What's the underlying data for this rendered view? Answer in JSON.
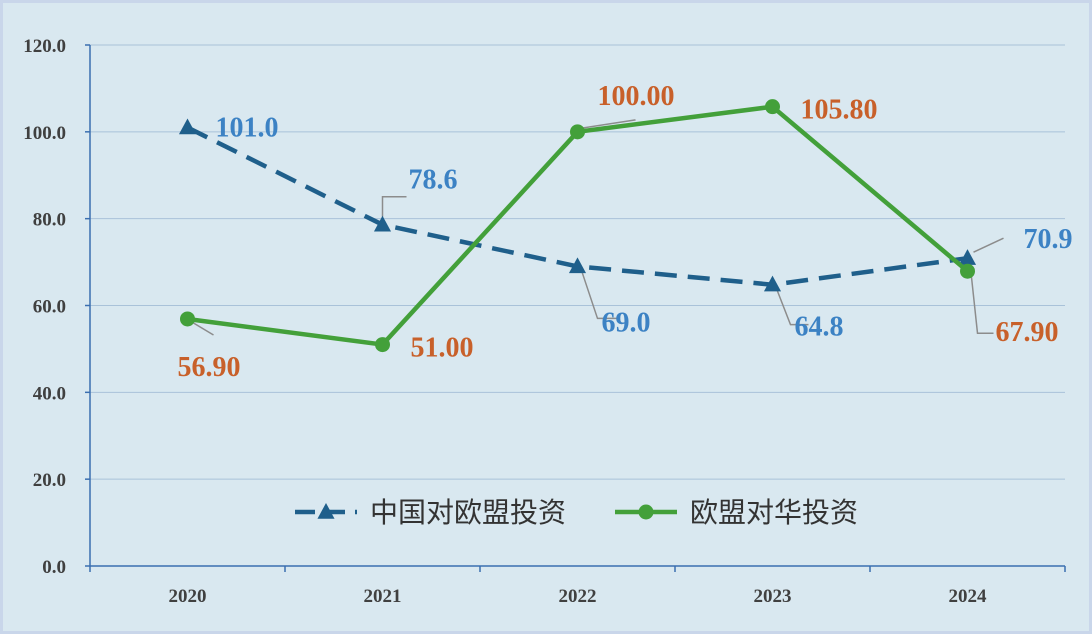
{
  "chart_data": {
    "type": "line",
    "categories": [
      "2020",
      "2021",
      "2022",
      "2023",
      "2024"
    ],
    "y_ticks": [
      "0.0",
      "20.0",
      "40.0",
      "60.0",
      "80.0",
      "100.0",
      "120.0"
    ],
    "ylim": [
      0,
      120
    ],
    "grid": true,
    "legend_position": "bottom-center",
    "series": [
      {
        "name": "中国对欧盟投资",
        "values": [
          101.0,
          78.6,
          69.0,
          64.8,
          70.9
        ],
        "labels": [
          "101.0",
          "78.6",
          "69.0",
          "64.8",
          "70.9"
        ],
        "color": "#1f5f8b",
        "label_color": "#3c82c4",
        "marker": "triangle",
        "style": "dashed"
      },
      {
        "name": "欧盟对华投资",
        "values": [
          56.9,
          51.0,
          100.0,
          105.8,
          67.9
        ],
        "labels": [
          "56.90",
          "51.00",
          "100.00",
          "105.80",
          "67.90"
        ],
        "color": "#43a03a",
        "label_color": "#c8602a",
        "marker": "circle",
        "style": "solid"
      }
    ]
  }
}
